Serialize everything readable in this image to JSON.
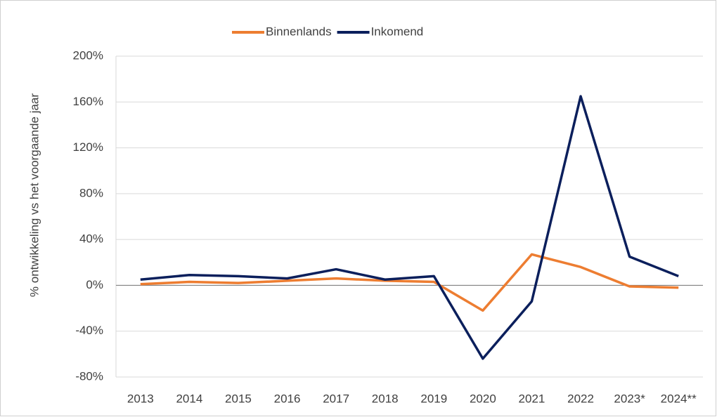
{
  "chart_data": {
    "type": "line",
    "y_axis_label": "% ontwikkeling vs het voorgaande jaar",
    "categories": [
      "2013",
      "2014",
      "2015",
      "2016",
      "2017",
      "2018",
      "2019",
      "2020",
      "2021",
      "2022",
      "2023*",
      "2024**"
    ],
    "series": [
      {
        "name": "Binnenlands",
        "color": "#ed7d31",
        "values": [
          1,
          3,
          2,
          4,
          6,
          4,
          3,
          -22,
          27,
          16,
          -1,
          -2
        ]
      },
      {
        "name": "Inkomend",
        "color": "#0b1f5c",
        "values": [
          5,
          9,
          8,
          6,
          14,
          5,
          8,
          -64,
          -14,
          165,
          25,
          8
        ]
      }
    ],
    "ylim": [
      -80,
      200
    ],
    "yticks": [
      {
        "value": -80,
        "label": "-80%"
      },
      {
        "value": -40,
        "label": "-40%"
      },
      {
        "value": 0,
        "label": "0%"
      },
      {
        "value": 40,
        "label": "40%"
      },
      {
        "value": 80,
        "label": "80%"
      },
      {
        "value": 120,
        "label": "120%"
      },
      {
        "value": 160,
        "label": "160%"
      },
      {
        "value": 200,
        "label": "200%"
      }
    ],
    "grid": true,
    "legend": "top"
  }
}
